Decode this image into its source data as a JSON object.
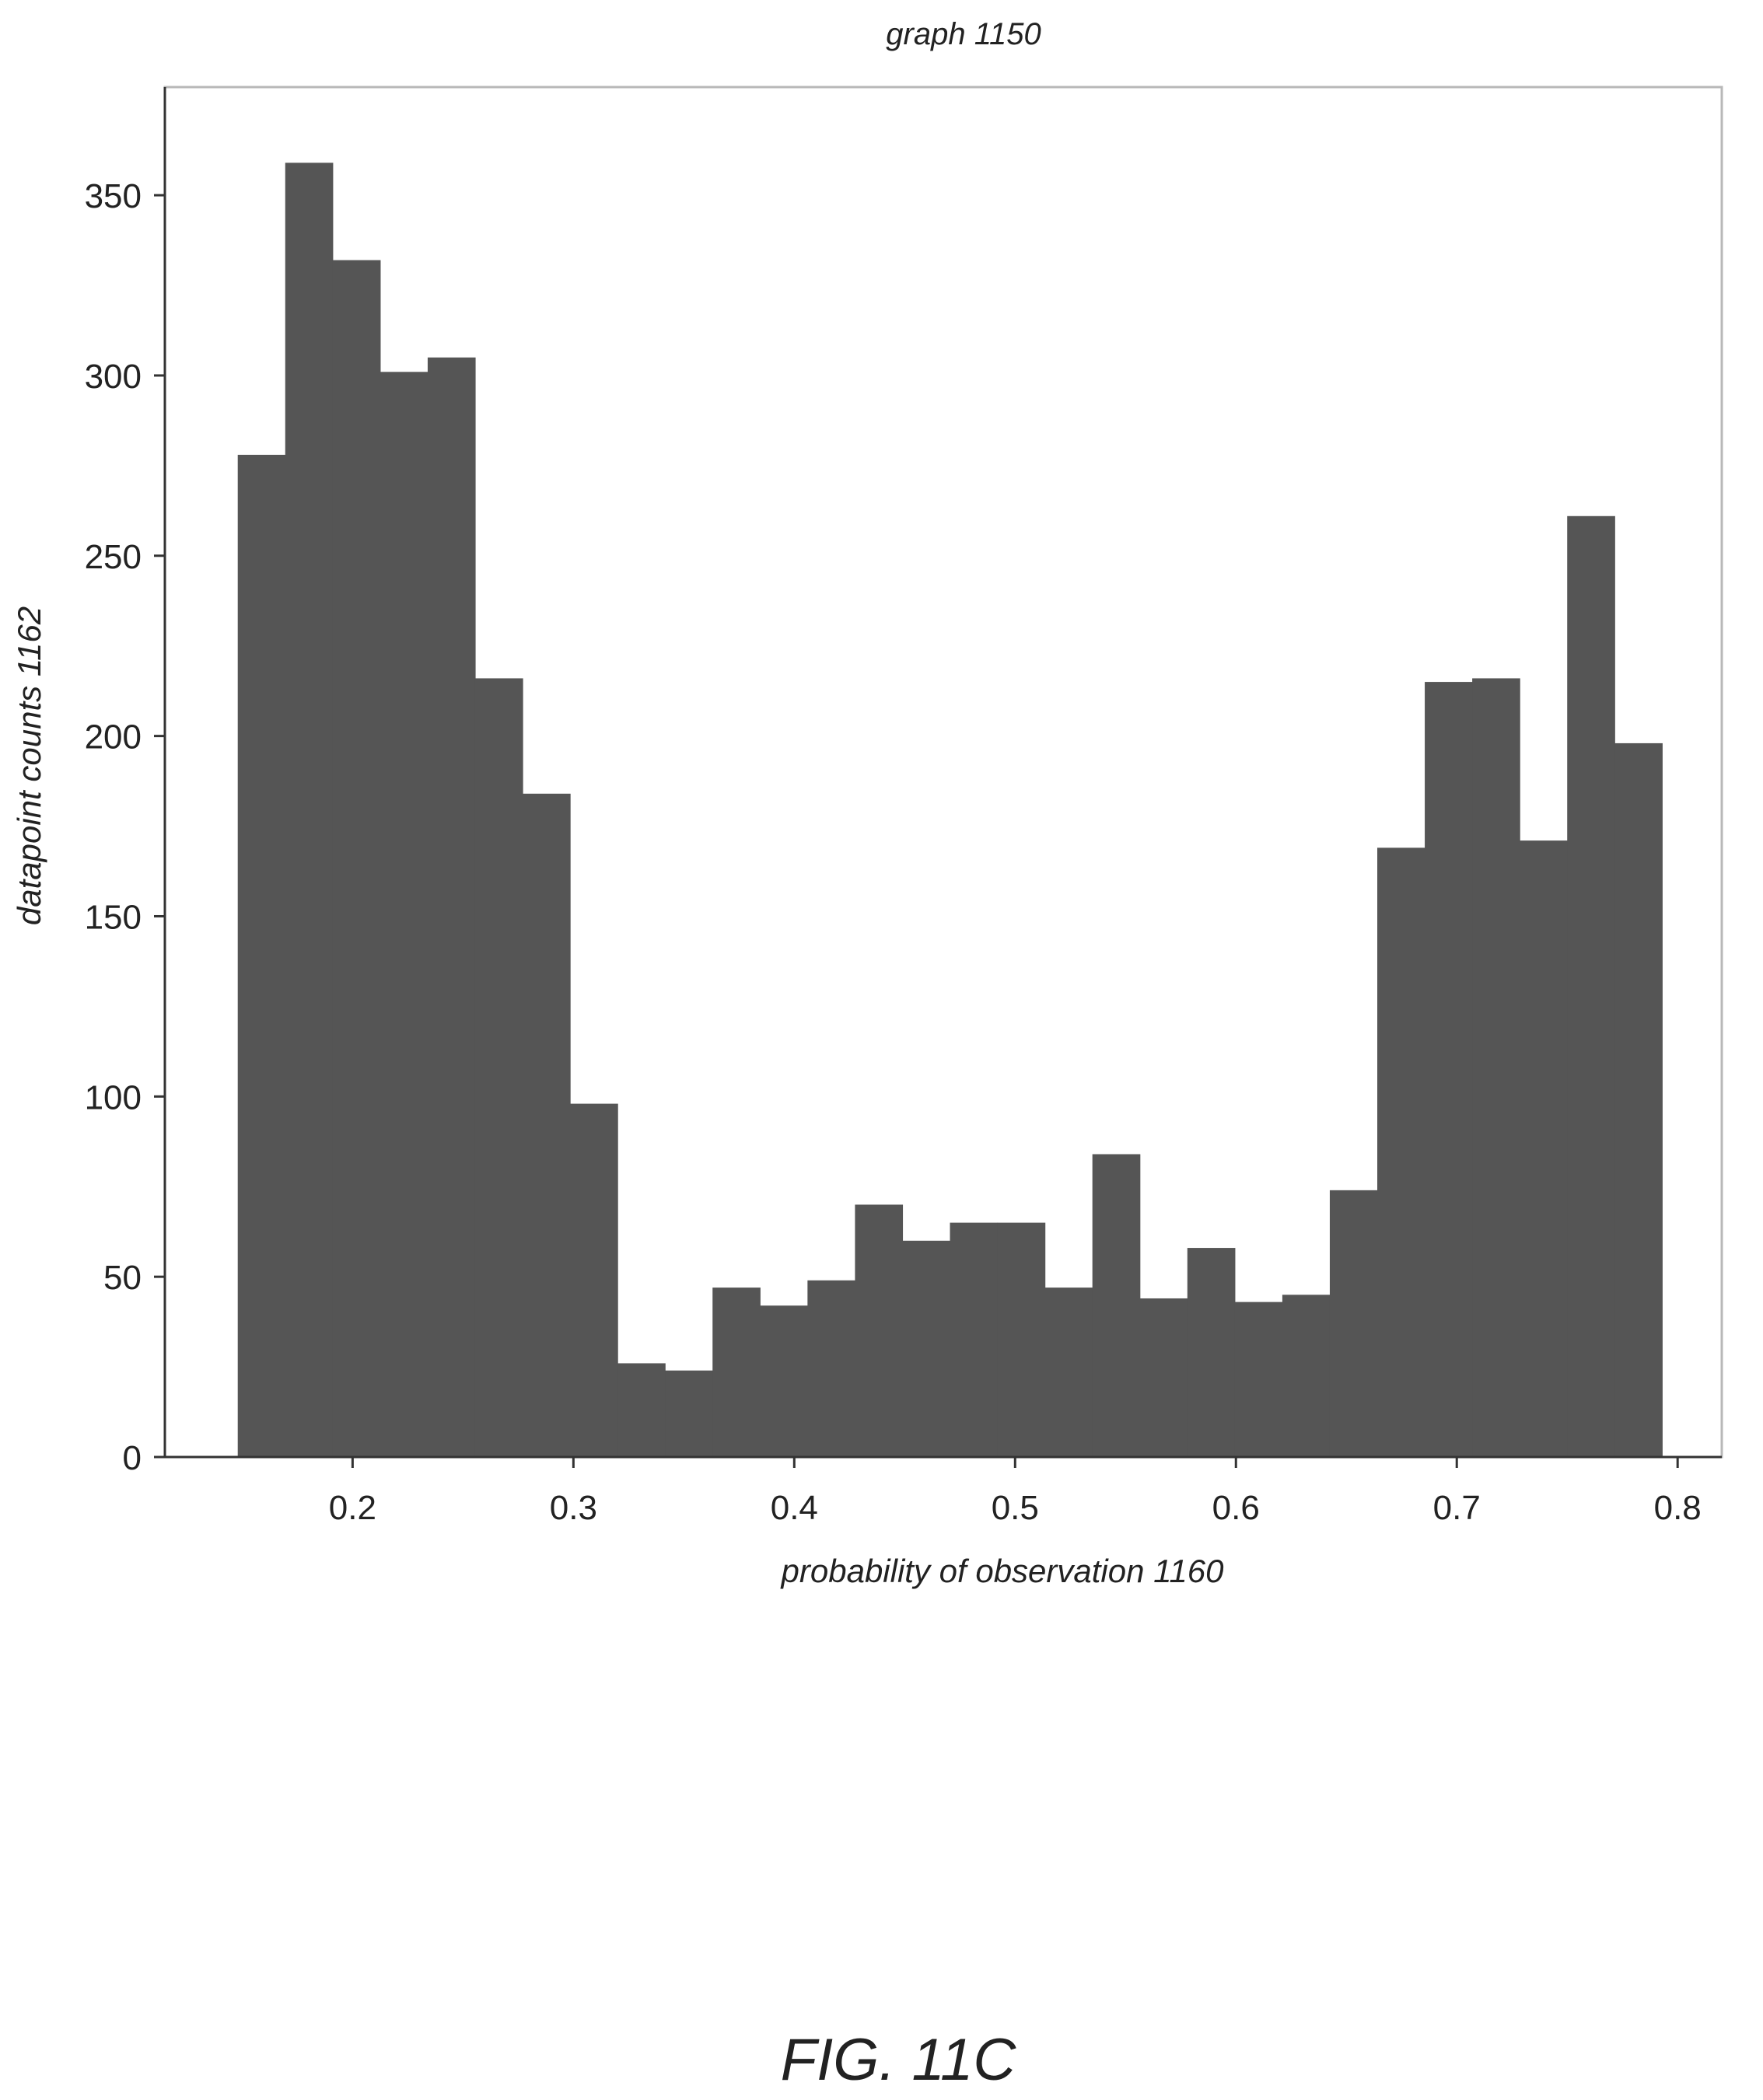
{
  "figure": {
    "caption": "FIG. 11C"
  },
  "chart_data": {
    "type": "bar",
    "subtype": "histogram",
    "title": "graph 1150",
    "xlabel": "probability of observation 1160",
    "ylabel": "datapoint counts 1162",
    "xlim": [
      0.115,
      0.82
    ],
    "ylim": [
      0,
      380
    ],
    "x_ticks": [
      0.2,
      0.3,
      0.4,
      0.5,
      0.6,
      0.7,
      0.8
    ],
    "x_tick_labels": [
      "0.2",
      "0.3",
      "0.4",
      "0.5",
      "0.6",
      "0.7",
      "0.8"
    ],
    "y_ticks": [
      0,
      50,
      100,
      150,
      200,
      250,
      300,
      350
    ],
    "y_tick_labels": [
      "0",
      "50",
      "100",
      "150",
      "200",
      "250",
      "300",
      "350"
    ],
    "grid": false,
    "bar_color": "#555555",
    "bins": [
      {
        "x0": 0.148,
        "x1": 0.1695,
        "value": 278
      },
      {
        "x0": 0.1695,
        "x1": 0.191,
        "value": 359
      },
      {
        "x0": 0.191,
        "x1": 0.2125,
        "value": 332
      },
      {
        "x0": 0.2125,
        "x1": 0.234,
        "value": 301
      },
      {
        "x0": 0.234,
        "x1": 0.2555,
        "value": 305
      },
      {
        "x0": 0.2555,
        "x1": 0.277,
        "value": 216
      },
      {
        "x0": 0.277,
        "x1": 0.2985,
        "value": 184
      },
      {
        "x0": 0.2985,
        "x1": 0.32,
        "value": 98
      },
      {
        "x0": 0.32,
        "x1": 0.3415,
        "value": 26
      },
      {
        "x0": 0.3415,
        "x1": 0.363,
        "value": 24
      },
      {
        "x0": 0.363,
        "x1": 0.3845,
        "value": 47
      },
      {
        "x0": 0.3845,
        "x1": 0.406,
        "value": 42
      },
      {
        "x0": 0.406,
        "x1": 0.4275,
        "value": 49
      },
      {
        "x0": 0.4275,
        "x1": 0.449,
        "value": 70
      },
      {
        "x0": 0.449,
        "x1": 0.4705,
        "value": 60
      },
      {
        "x0": 0.4705,
        "x1": 0.492,
        "value": 65
      },
      {
        "x0": 0.492,
        "x1": 0.5135,
        "value": 65
      },
      {
        "x0": 0.5135,
        "x1": 0.535,
        "value": 47
      },
      {
        "x0": 0.535,
        "x1": 0.5565,
        "value": 84
      },
      {
        "x0": 0.5565,
        "x1": 0.578,
        "value": 44
      },
      {
        "x0": 0.578,
        "x1": 0.5995,
        "value": 58
      },
      {
        "x0": 0.5995,
        "x1": 0.621,
        "value": 43
      },
      {
        "x0": 0.621,
        "x1": 0.6425,
        "value": 45
      },
      {
        "x0": 0.6425,
        "x1": 0.664,
        "value": 74
      },
      {
        "x0": 0.664,
        "x1": 0.6855,
        "value": 169
      },
      {
        "x0": 0.6855,
        "x1": 0.707,
        "value": 215
      },
      {
        "x0": 0.707,
        "x1": 0.7285,
        "value": 216
      },
      {
        "x0": 0.7285,
        "x1": 0.75,
        "value": 171
      },
      {
        "x0": 0.75,
        "x1": 0.7715,
        "value": 261
      },
      {
        "x0": 0.7715,
        "x1": 0.793,
        "value": 198
      }
    ]
  }
}
